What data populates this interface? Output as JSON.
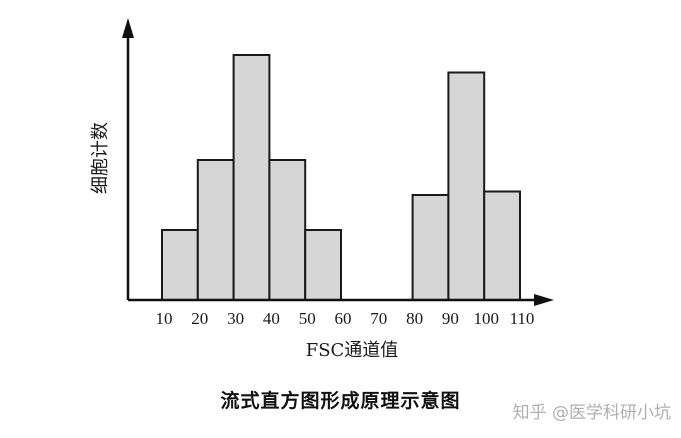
{
  "chart_data": {
    "type": "bar",
    "categories": [
      "10",
      "20",
      "30",
      "40",
      "50",
      "60",
      "70",
      "80",
      "90",
      "100",
      "110"
    ],
    "values": [
      2,
      4,
      7,
      4,
      2,
      0,
      0,
      3,
      6.5,
      3.1,
      0
    ],
    "xlabel": "FSC通道值",
    "ylabel": "细胞计数",
    "grid": false
  },
  "caption": "流式直方图形成原理示意图",
  "watermark": "知乎 @医学科研小坑",
  "colors": {
    "bar_fill": "#d6d6d6",
    "bar_stroke": "#1a1a1a",
    "axis": "#111111"
  }
}
